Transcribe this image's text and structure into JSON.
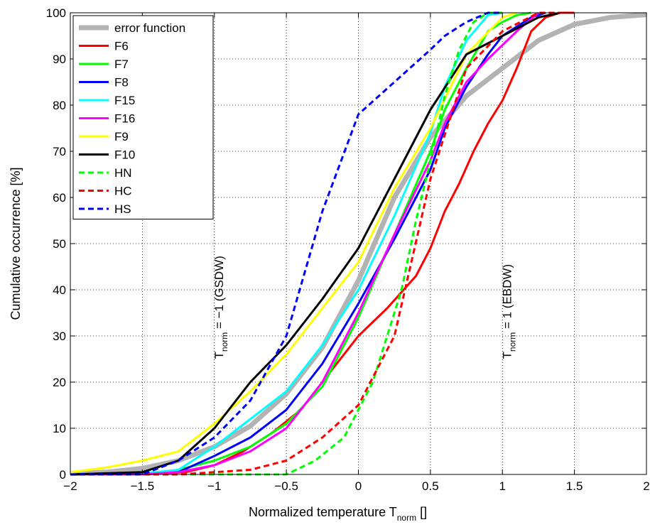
{
  "chart_data": {
    "type": "line",
    "xlabel": "Normalized temperature T",
    "xlabel_sub": "norm",
    "xlabel_unit": " []",
    "ylabel": "Cumulative occurrence [%]",
    "xlim": [
      -2,
      2
    ],
    "ylim": [
      0,
      100
    ],
    "xticks": [
      -2,
      -1.5,
      -1,
      -0.5,
      0,
      0.5,
      1,
      1.5,
      2
    ],
    "xtick_labels": [
      "−2",
      "−1.5",
      "−1",
      "−0.5",
      "0",
      "0.5",
      "1",
      "1.5",
      "2"
    ],
    "yticks": [
      0,
      10,
      20,
      30,
      40,
      50,
      60,
      70,
      80,
      90,
      100
    ],
    "ytick_labels": [
      "0",
      "10",
      "20",
      "30",
      "40",
      "50",
      "60",
      "70",
      "80",
      "90",
      "100"
    ],
    "grid": true,
    "legend_position": "top-left",
    "annotations": [
      {
        "text_main": "T",
        "text_sub": "norm",
        "text_rest": " = −1 (GSDW)",
        "x": -1.0,
        "y": 25
      },
      {
        "text_main": "T",
        "text_sub": "norm",
        "text_rest": " = 1 (EBDW)",
        "x": 1.0,
        "y": 25
      }
    ],
    "series": [
      {
        "name": "error function",
        "color": "#b3b3b3",
        "dash": "solid",
        "width": 7,
        "x": [
          -2,
          -1.75,
          -1.5,
          -1.25,
          -1,
          -0.75,
          -0.5,
          -0.25,
          0,
          0.25,
          0.5,
          0.75,
          1,
          1.25,
          1.5,
          1.75,
          2
        ],
        "y": [
          0.2,
          0.5,
          1.3,
          3,
          6,
          10.5,
          17.5,
          27.5,
          42,
          60,
          73,
          82,
          88,
          94,
          97.5,
          99,
          99.6
        ]
      },
      {
        "name": "F6",
        "color": "#ff0000",
        "dash": "solid",
        "width": 3,
        "x": [
          -2,
          -1.5,
          -1.2,
          -1.0,
          -0.8,
          -0.6,
          -0.4,
          -0.2,
          0,
          0.2,
          0.4,
          0.5,
          0.6,
          0.7,
          0.8,
          0.9,
          1.0,
          1.1,
          1.2,
          1.3,
          1.4,
          1.5
        ],
        "y": [
          0,
          0,
          0.5,
          2,
          5,
          9,
          14,
          22,
          30,
          36,
          43,
          49,
          57,
          63,
          70,
          76,
          81,
          88,
          96,
          99,
          100,
          100
        ]
      },
      {
        "name": "F7",
        "color": "#00ff00",
        "dash": "solid",
        "width": 3,
        "x": [
          -2,
          -1.5,
          -1.25,
          -1,
          -0.75,
          -0.5,
          -0.25,
          0,
          0.25,
          0.5,
          0.6,
          0.75,
          0.9,
          1.0,
          1.1,
          1.2
        ],
        "y": [
          0,
          0,
          1,
          3,
          6,
          11,
          19,
          34,
          52,
          70,
          79,
          88,
          96,
          98,
          99.5,
          100
        ]
      },
      {
        "name": "F8",
        "color": "#0000ff",
        "dash": "solid",
        "width": 3,
        "x": [
          -2,
          -1.5,
          -1.25,
          -1,
          -0.75,
          -0.5,
          -0.25,
          0,
          0.25,
          0.5,
          0.6,
          0.75,
          0.9,
          1.0,
          1.1,
          1.2,
          1.3
        ],
        "y": [
          0,
          0,
          0.5,
          4,
          8,
          14,
          24,
          37,
          51,
          66,
          75,
          84,
          91,
          95,
          97,
          99,
          100
        ]
      },
      {
        "name": "F15",
        "color": "#00ffff",
        "dash": "solid",
        "width": 3,
        "x": [
          -2,
          -1.5,
          -1.25,
          -1,
          -0.75,
          -0.5,
          -0.25,
          0,
          0.25,
          0.5,
          0.6,
          0.75,
          0.9,
          1.0
        ],
        "y": [
          0,
          0.2,
          1,
          6,
          12,
          18,
          28,
          40,
          56,
          74,
          84,
          94,
          99.5,
          100
        ]
      },
      {
        "name": "F16",
        "color": "#ff00ff",
        "dash": "solid",
        "width": 3,
        "x": [
          -2,
          -1.5,
          -1.25,
          -1,
          -0.75,
          -0.5,
          -0.25,
          0,
          0.25,
          0.5,
          0.6,
          0.75,
          0.9,
          1.0,
          1.1,
          1.25
        ],
        "y": [
          0,
          0,
          0.5,
          2,
          5,
          10,
          20,
          35,
          52,
          68,
          76,
          85,
          90,
          93,
          96,
          100
        ]
      },
      {
        "name": "F9",
        "color": "#ffff00",
        "dash": "solid",
        "width": 3,
        "x": [
          -2,
          -1.75,
          -1.5,
          -1.25,
          -1,
          -0.75,
          -0.5,
          -0.25,
          0,
          0.25,
          0.5,
          0.75,
          1.0,
          1.1
        ],
        "y": [
          0.5,
          1.5,
          3,
          5,
          11,
          18,
          26,
          36,
          46,
          62,
          75,
          91,
          99,
          100
        ]
      },
      {
        "name": "F10",
        "color": "#000000",
        "dash": "solid",
        "width": 3,
        "x": [
          -2,
          -1.5,
          -1.25,
          -1,
          -0.75,
          -0.5,
          -0.25,
          0,
          0.25,
          0.5,
          0.75,
          1.0,
          1.25,
          1.4
        ],
        "y": [
          0,
          0.5,
          3,
          10,
          20,
          28,
          38,
          49,
          64,
          79,
          91,
          95,
          99,
          100
        ]
      },
      {
        "name": "HN",
        "color": "#00ff00",
        "dash": "dashed",
        "width": 3,
        "x": [
          -2,
          -0.5,
          -0.3,
          -0.1,
          0,
          0.1,
          0.2,
          0.3,
          0.4,
          0.5,
          0.6,
          0.7,
          0.8,
          0.9,
          1.0
        ],
        "y": [
          0,
          0,
          3,
          8,
          14,
          20,
          30,
          40,
          55,
          68,
          82,
          92,
          98,
          100,
          100
        ]
      },
      {
        "name": "HC",
        "color": "#ff0000",
        "dash": "dashed",
        "width": 3,
        "x": [
          -2,
          -1.5,
          -1.25,
          -1,
          -0.75,
          -0.5,
          -0.25,
          0,
          0.25,
          0.5,
          0.75,
          1.0,
          1.25,
          1.5
        ],
        "y": [
          0,
          0,
          0,
          0.5,
          1,
          3,
          8,
          15,
          30,
          64,
          88,
          96,
          100,
          100
        ]
      },
      {
        "name": "HS",
        "color": "#0000ff",
        "dash": "dashed",
        "width": 3,
        "x": [
          -2,
          -1.5,
          -1.25,
          -1,
          -0.75,
          -0.5,
          -0.25,
          0,
          0.25,
          0.5,
          0.6,
          0.75,
          0.9,
          1.0
        ],
        "y": [
          0,
          0,
          3,
          8,
          16,
          30,
          57,
          78,
          85,
          92,
          95,
          98,
          100,
          100
        ]
      }
    ]
  }
}
